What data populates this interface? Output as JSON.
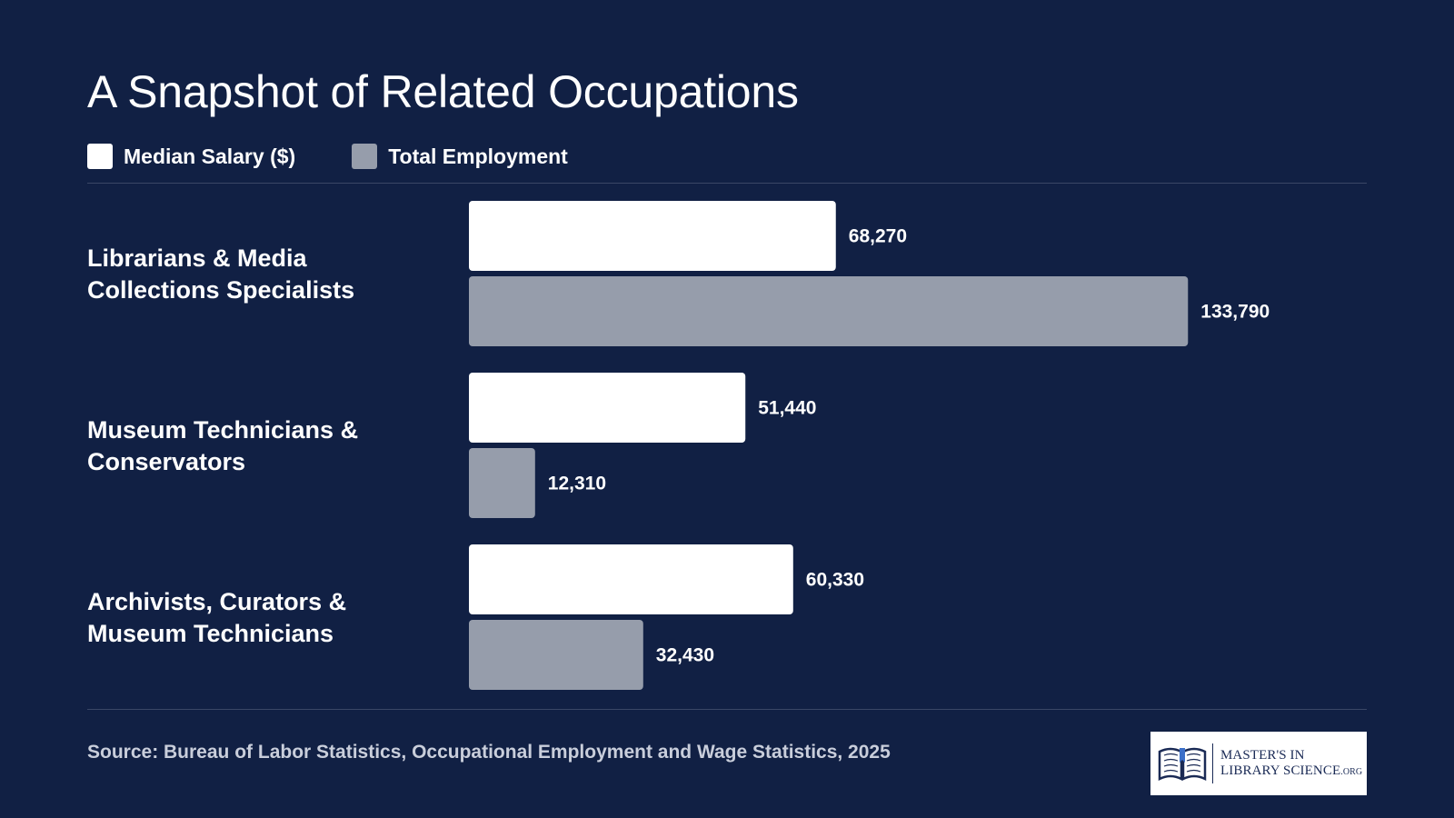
{
  "chart_data": {
    "type": "bar",
    "orientation": "horizontal",
    "title": "A Snapshot of Related Occupations",
    "categories": [
      [
        "Librarians & Media",
        "Collections Specialists"
      ],
      [
        "Museum Technicians &",
        "Conservators"
      ],
      [
        "Archivists, Curators &",
        "Museum Technicians"
      ]
    ],
    "series": [
      {
        "name": "Median Salary ($)",
        "values": [
          68270,
          51440,
          60330
        ],
        "labels": [
          "68,270",
          "51,440",
          "60,330"
        ],
        "color": "#ffffff"
      },
      {
        "name": "Total Employment",
        "values": [
          133790,
          12310,
          32430
        ],
        "labels": [
          "133,790",
          "12,310",
          "32,430"
        ],
        "color": "#969dab"
      }
    ],
    "xlim": [
      0,
      140000
    ],
    "grid": false,
    "legend_position": "top-left"
  },
  "source": "Source: Bureau of Labor Statistics, Occupational Employment and Wage Statistics, 2025",
  "logo": {
    "line1": "MASTER'S IN",
    "line2": "LIBRARY SCIENCE",
    "suffix": ".ORG",
    "icon": "open-book-icon"
  },
  "colors": {
    "background": "#112044",
    "salary": "#ffffff",
    "employment": "#969dab"
  }
}
